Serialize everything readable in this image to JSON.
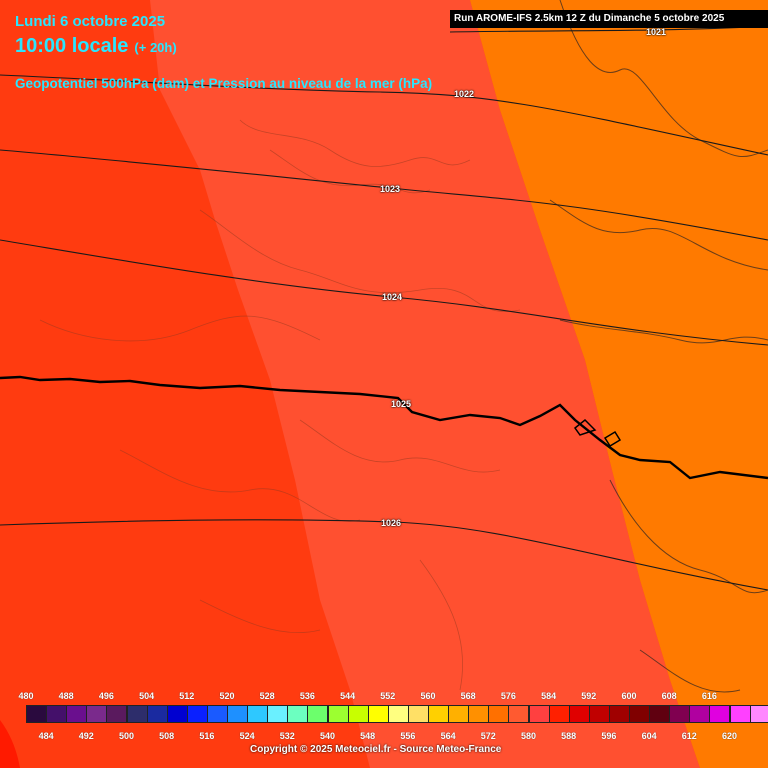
{
  "header": {
    "date": "Lundi 6 octobre 2025",
    "time": "10:00 locale",
    "lead": "(+ 20h)",
    "field": "Geopotentiel 500hPa (dam) et Pression au niveau de la mer (hPa)",
    "run": "Run AROME-IFS 2.5km 12 Z du Dimanche 5 octobre 2025"
  },
  "colors": {
    "zone_576": "#ff3b10",
    "zone_580": "#ff5030",
    "zone_584": "#ff7a00"
  },
  "isobars": [
    "1021",
    "1022",
    "1023",
    "1024",
    "1025",
    "1026"
  ],
  "legend": {
    "top_labels": [
      "480",
      "488",
      "496",
      "504",
      "512",
      "520",
      "528",
      "536",
      "544",
      "552",
      "560",
      "568",
      "576",
      "584",
      "592",
      "600",
      "608",
      "616"
    ],
    "bottom_labels": [
      "484",
      "492",
      "500",
      "508",
      "516",
      "524",
      "532",
      "540",
      "548",
      "556",
      "564",
      "572",
      "580",
      "588",
      "596",
      "604",
      "612",
      "620"
    ],
    "colors": [
      "#2a0a3e",
      "#44106a",
      "#6a0f8e",
      "#7a2a8c",
      "#5a1a5e",
      "#2d2d6b",
      "#1a2aa0",
      "#0000d0",
      "#0a20ff",
      "#1a5aff",
      "#1e90ff",
      "#2ec8ff",
      "#6af0ff",
      "#6cffc0",
      "#6cff6c",
      "#9cff30",
      "#c8ff00",
      "#ffff00",
      "#ffff80",
      "#ffe066",
      "#ffd000",
      "#ffb000",
      "#ff9000",
      "#ff7000",
      "#ff5a30",
      "#ff4040",
      "#ff2000",
      "#e00000",
      "#c00000",
      "#a00000",
      "#800000",
      "#600010",
      "#800050",
      "#b000a0",
      "#e000e0",
      "#ff40ff",
      "#ff88ff"
    ]
  },
  "copyright": "Copyright © 2025 Meteociel.fr - Source Meteo-France"
}
